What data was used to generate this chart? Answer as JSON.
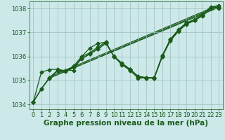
{
  "xlabel": "Graphe pression niveau de la mer (hPa)",
  "ylim": [
    1033.8,
    1038.3
  ],
  "xlim": [
    -0.5,
    23.5
  ],
  "yticks": [
    1034,
    1035,
    1036,
    1037,
    1038
  ],
  "xticks": [
    0,
    1,
    2,
    3,
    4,
    5,
    6,
    7,
    8,
    9,
    10,
    11,
    12,
    13,
    14,
    15,
    16,
    17,
    18,
    19,
    20,
    21,
    22,
    23
  ],
  "bg_color": "#cce8e8",
  "line_color": "#1a5c1a",
  "grid_color": "#9dbfbf",
  "series": [
    [
      1034.1,
      1034.65,
      1035.1,
      1035.4,
      1035.38,
      1035.55,
      1035.9,
      1036.1,
      1036.3,
      1036.55,
      1036.0,
      1035.7,
      1035.45,
      1035.15,
      1035.1,
      1035.1,
      1036.0,
      1036.65,
      1037.05,
      1037.35,
      1037.5,
      1037.7,
      1038.0,
      1038.05
    ],
    [
      1034.1,
      1034.65,
      1035.12,
      1035.41,
      1035.4,
      1035.57,
      1035.92,
      1036.12,
      1036.32,
      1036.57,
      1036.02,
      1035.72,
      1035.47,
      1035.17,
      1035.12,
      1035.12,
      1036.02,
      1036.67,
      1037.07,
      1037.37,
      1037.52,
      1037.72,
      1038.02,
      1038.07
    ],
    [
      1034.1,
      1035.35,
      1035.45,
      1035.47,
      1035.4,
      1035.6,
      1036.0,
      1036.15,
      1036.4,
      1036.6,
      1036.0,
      1035.7,
      1035.47,
      1035.17,
      1035.12,
      1035.12,
      1036.05,
      1036.72,
      1037.1,
      1037.4,
      1037.55,
      1037.77,
      1038.07,
      1038.12
    ],
    [
      1034.1,
      1034.65,
      1035.1,
      1035.42,
      1035.42,
      1035.42,
      1036.0,
      1036.35,
      1036.55,
      1036.6,
      1036.0,
      1035.65,
      1035.42,
      1035.1,
      1035.1,
      1035.1,
      1036.0,
      1036.72,
      1037.12,
      1037.42,
      1037.52,
      1037.72,
      1038.02,
      1038.02
    ]
  ],
  "straight_series": [
    {
      "x0": 2,
      "y0": 1035.1,
      "x1": 23,
      "y1": 1038.05
    },
    {
      "x0": 2,
      "y0": 1035.1,
      "x1": 23,
      "y1": 1038.1
    },
    {
      "x0": 2,
      "y0": 1035.15,
      "x1": 23,
      "y1": 1038.15
    }
  ],
  "marker": "D",
  "markersize": 2.5,
  "linewidth": 0.9,
  "xlabel_fontsize": 7.5,
  "tick_fontsize": 6.0,
  "xlabel_fontweight": "bold"
}
